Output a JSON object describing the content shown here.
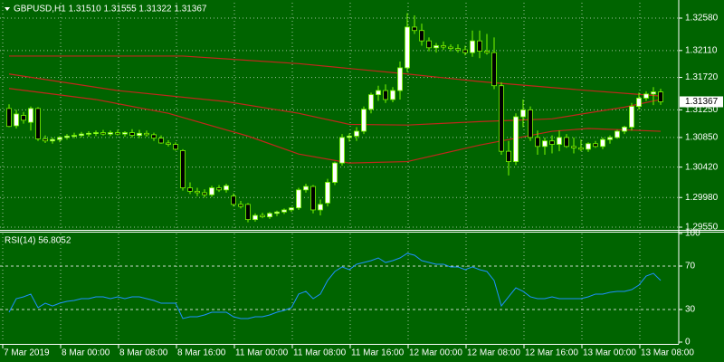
{
  "chart_data": [
    {
      "type": "candlestick",
      "title": "GBPUSD,H1  1.31510 1.31555 1.31322 1.31367",
      "categories": [
        "7 Mar 2019",
        null,
        null,
        null,
        null,
        null,
        null,
        null,
        "8 Mar 00:00",
        null,
        null,
        null,
        null,
        null,
        null,
        null,
        "8 Mar 08:00",
        null,
        null,
        null,
        null,
        null,
        null,
        null,
        "8 Mar 16:00",
        null,
        null,
        null,
        null,
        null,
        null,
        null,
        "11 Mar 00:00",
        null,
        null,
        null,
        null,
        null,
        null,
        null,
        "11 Mar 08:00",
        null,
        null,
        null,
        null,
        null,
        null,
        null,
        "11 Mar 16:00",
        null,
        null,
        null,
        null,
        null,
        null,
        null,
        "12 Mar 00:00",
        null,
        null,
        null,
        null,
        null,
        null,
        null,
        "12 Mar 08:00",
        null,
        null,
        null,
        null,
        null,
        null,
        null,
        "12 Mar 16:00",
        null,
        null,
        null,
        null,
        null,
        null,
        null,
        "13 Mar 00:00",
        null,
        null,
        null,
        null,
        null,
        null,
        null,
        "13 Mar 08:00",
        null,
        null
      ],
      "ohlc": [
        [
          1.3127,
          1.3133,
          1.31,
          1.3101
        ],
        [
          1.3102,
          1.3125,
          1.3098,
          1.3119
        ],
        [
          1.3117,
          1.3122,
          1.3105,
          1.311
        ],
        [
          1.3107,
          1.313,
          1.3095,
          1.3127
        ],
        [
          1.3127,
          1.3129,
          1.308,
          1.3083
        ],
        [
          1.3083,
          1.3088,
          1.3077,
          1.308
        ],
        [
          1.308,
          1.3085,
          1.3076,
          1.3082
        ],
        [
          1.3082,
          1.3087,
          1.3078,
          1.3085
        ],
        [
          1.3085,
          1.309,
          1.3082,
          1.3087
        ],
        [
          1.3087,
          1.3092,
          1.3084,
          1.3088
        ],
        [
          1.3088,
          1.3093,
          1.3085,
          1.309
        ],
        [
          1.309,
          1.3094,
          1.3086,
          1.3091
        ],
        [
          1.3091,
          1.3095,
          1.3087,
          1.3092
        ],
        [
          1.3092,
          1.3096,
          1.3088,
          1.309
        ],
        [
          1.309,
          1.3095,
          1.3087,
          1.3092
        ],
        [
          1.3092,
          1.3096,
          1.3088,
          1.309
        ],
        [
          1.309,
          1.3094,
          1.3086,
          1.3092
        ],
        [
          1.3092,
          1.3097,
          1.3085,
          1.3088
        ],
        [
          1.3088,
          1.3096,
          1.3084,
          1.3091
        ],
        [
          1.3091,
          1.3095,
          1.3086,
          1.3089
        ],
        [
          1.3089,
          1.3092,
          1.308,
          1.3084
        ],
        [
          1.3084,
          1.3088,
          1.3076,
          1.3077
        ],
        [
          1.3077,
          1.3081,
          1.3072,
          1.3075
        ],
        [
          1.3075,
          1.3078,
          1.3066,
          1.3068
        ],
        [
          1.3066,
          1.3068,
          1.3008,
          1.3012
        ],
        [
          1.3012,
          1.302,
          1.3003,
          1.3007
        ],
        [
          1.3007,
          1.3012,
          1.3,
          1.3005
        ],
        [
          1.3005,
          1.301,
          1.2998,
          1.3002
        ],
        [
          1.3002,
          1.3015,
          1.2999,
          1.3012
        ],
        [
          1.3012,
          1.3016,
          1.3006,
          1.3009
        ],
        [
          1.3009,
          1.3018,
          1.3005,
          1.3015
        ],
        [
          1.3,
          1.3004,
          1.2985,
          1.2988
        ],
        [
          1.2988,
          1.2993,
          1.2982,
          1.2985
        ],
        [
          1.2988,
          1.299,
          1.2962,
          1.2966
        ],
        [
          1.2966,
          1.2975,
          1.2963,
          1.2972
        ],
        [
          1.2972,
          1.2976,
          1.2968,
          1.297
        ],
        [
          1.297,
          1.2977,
          1.2967,
          1.2975
        ],
        [
          1.2975,
          1.2979,
          1.2971,
          1.2977
        ],
        [
          1.2977,
          1.2982,
          1.2974,
          1.298
        ],
        [
          1.298,
          1.2984,
          1.2977,
          1.2983
        ],
        [
          1.2983,
          1.3012,
          1.298,
          1.3009
        ],
        [
          1.3009,
          1.3018,
          1.3005,
          1.3014
        ],
        [
          1.3014,
          1.3016,
          1.2975,
          1.298
        ],
        [
          1.298,
          1.2995,
          1.2972,
          1.2988
        ],
        [
          1.299,
          1.3025,
          1.2985,
          1.302
        ],
        [
          1.302,
          1.305,
          1.3016,
          1.3048
        ],
        [
          1.3048,
          1.309,
          1.3044,
          1.3085
        ],
        [
          1.3085,
          1.3091,
          1.3079,
          1.3087
        ],
        [
          1.3087,
          1.31,
          1.308,
          1.3094
        ],
        [
          1.3094,
          1.313,
          1.309,
          1.3126
        ],
        [
          1.3126,
          1.315,
          1.312,
          1.3147
        ],
        [
          1.3147,
          1.316,
          1.3138,
          1.3153
        ],
        [
          1.3153,
          1.3162,
          1.3135,
          1.314
        ],
        [
          1.314,
          1.3158,
          1.3136,
          1.3153
        ],
        [
          1.3153,
          1.3195,
          1.314,
          1.3186
        ],
        [
          1.3186,
          1.3265,
          1.318,
          1.3245
        ],
        [
          1.3245,
          1.3262,
          1.3235,
          1.324
        ],
        [
          1.324,
          1.325,
          1.3218,
          1.3225
        ],
        [
          1.3225,
          1.323,
          1.321,
          1.3215
        ],
        [
          1.3215,
          1.3222,
          1.3208,
          1.3218
        ],
        [
          1.3218,
          1.3224,
          1.3212,
          1.3216
        ],
        [
          1.3216,
          1.322,
          1.321,
          1.3214
        ],
        [
          1.3214,
          1.322,
          1.3208,
          1.3212
        ],
        [
          1.3212,
          1.3218,
          1.3204,
          1.3208
        ],
        [
          1.3208,
          1.324,
          1.3202,
          1.3225
        ],
        [
          1.3225,
          1.324,
          1.32,
          1.321
        ],
        [
          1.321,
          1.3235,
          1.3205,
          1.3208
        ],
        [
          1.3208,
          1.323,
          1.3155,
          1.316
        ],
        [
          1.316,
          1.3165,
          1.306,
          1.3065
        ],
        [
          1.3065,
          1.308,
          1.303,
          1.305
        ],
        [
          1.305,
          1.312,
          1.3045,
          1.3115
        ],
        [
          1.3115,
          1.314,
          1.31,
          1.3125
        ],
        [
          1.3125,
          1.313,
          1.308,
          1.3085
        ],
        [
          1.3085,
          1.3095,
          1.306,
          1.3072
        ],
        [
          1.3072,
          1.3085,
          1.306,
          1.308
        ],
        [
          1.308,
          1.3088,
          1.3062,
          1.3075
        ],
        [
          1.3075,
          1.3095,
          1.3065,
          1.3085
        ],
        [
          1.3085,
          1.309,
          1.307,
          1.3072
        ],
        [
          1.3072,
          1.3085,
          1.3062,
          1.307
        ],
        [
          1.307,
          1.3082,
          1.3065,
          1.3068
        ],
        [
          1.3068,
          1.3078,
          1.3064,
          1.3076
        ],
        [
          1.3076,
          1.308,
          1.307,
          1.3072
        ],
        [
          1.3072,
          1.3085,
          1.3068,
          1.3082
        ],
        [
          1.3082,
          1.3088,
          1.3076,
          1.3085
        ],
        [
          1.3085,
          1.3096,
          1.3083,
          1.3094
        ],
        [
          1.3094,
          1.3102,
          1.309,
          1.31
        ],
        [
          1.31,
          1.3135,
          1.3095,
          1.313
        ],
        [
          1.313,
          1.315,
          1.3125,
          1.3142
        ],
        [
          1.3142,
          1.3152,
          1.3138,
          1.3148
        ],
        [
          1.3148,
          1.3158,
          1.3132,
          1.3151
        ],
        [
          1.3151,
          1.31555,
          1.31322,
          1.31367
        ]
      ],
      "series": [
        {
          "color": "#c0281c",
          "x": [
            0,
            24,
            40,
            55,
            65,
            80,
            90
          ],
          "values": [
            1.3203,
            1.3203,
            1.3192,
            1.3177,
            1.3166,
            1.3153,
            1.3145
          ]
        },
        {
          "color": "#c0281c",
          "x": [
            0,
            15,
            30,
            40,
            47,
            55,
            65,
            75,
            85,
            90
          ],
          "values": [
            1.3177,
            1.3153,
            1.3137,
            1.312,
            1.3104,
            1.3103,
            1.3108,
            1.3112,
            1.3129,
            1.314
          ]
        },
        {
          "color": "#c0281c",
          "x": [
            0,
            12,
            22,
            33,
            40,
            47,
            55,
            65,
            75,
            80,
            90
          ],
          "values": [
            1.3156,
            1.314,
            1.312,
            1.3087,
            1.3061,
            1.3048,
            1.305,
            1.3074,
            1.3094,
            1.3098,
            1.3094
          ]
        }
      ],
      "ylim": [
        1.29524,
        1.32803
      ],
      "yticks": [
        {
          "value": 1.3258,
          "label": "1.32580"
        },
        {
          "value": 1.3211,
          "label": "1.32110"
        },
        {
          "value": 1.3172,
          "label": "1.31720"
        },
        {
          "value": 1.3125,
          "label": "1.31250"
        },
        {
          "value": 1.3085,
          "label": "1.30850"
        },
        {
          "value": 1.3042,
          "label": "1.30420"
        },
        {
          "value": 1.2998,
          "label": "1.29980"
        },
        {
          "value": 1.2955,
          "label": "1.29550"
        }
      ],
      "last_price": 1.31367,
      "grid": true,
      "background": "#006400",
      "bull_color": "#ffffff",
      "bear_color": "#000000",
      "wick_color": "#7cfc00"
    },
    {
      "type": "line",
      "title": "RSI(14) 56.8052",
      "values": [
        27.5,
        40,
        41.7,
        44.2,
        31.7,
        35.8,
        33.3,
        35.8,
        37.5,
        38.3,
        40,
        40,
        41.7,
        41.7,
        40,
        41.7,
        40,
        41.7,
        41.7,
        40,
        38.3,
        35.8,
        35.8,
        35.8,
        21.7,
        23.3,
        23.3,
        25,
        27.5,
        27.5,
        27.5,
        23.3,
        21.7,
        21.7,
        23.3,
        23.3,
        25,
        27.5,
        29.2,
        31.7,
        44.2,
        46.7,
        40,
        44.2,
        56.7,
        65,
        69.2,
        66.7,
        71.7,
        73.3,
        75,
        77.5,
        73.3,
        75,
        77.5,
        81.7,
        80,
        75,
        73.3,
        71.7,
        71.7,
        69.2,
        69.2,
        66.7,
        69.2,
        66.7,
        65,
        56.7,
        33.3,
        41.7,
        50,
        46.7,
        41.7,
        40,
        40,
        41.7,
        40,
        40,
        40,
        40,
        41.7,
        44.2,
        44.2,
        45.8,
        46.7,
        46.7,
        48.3,
        52.5,
        60.8,
        63.3,
        56.8052
      ],
      "color": "#1e90ff",
      "ylim": [
        0,
        100
      ],
      "yticks": [
        0,
        30,
        70,
        100
      ],
      "levels": [
        30,
        70
      ]
    }
  ]
}
